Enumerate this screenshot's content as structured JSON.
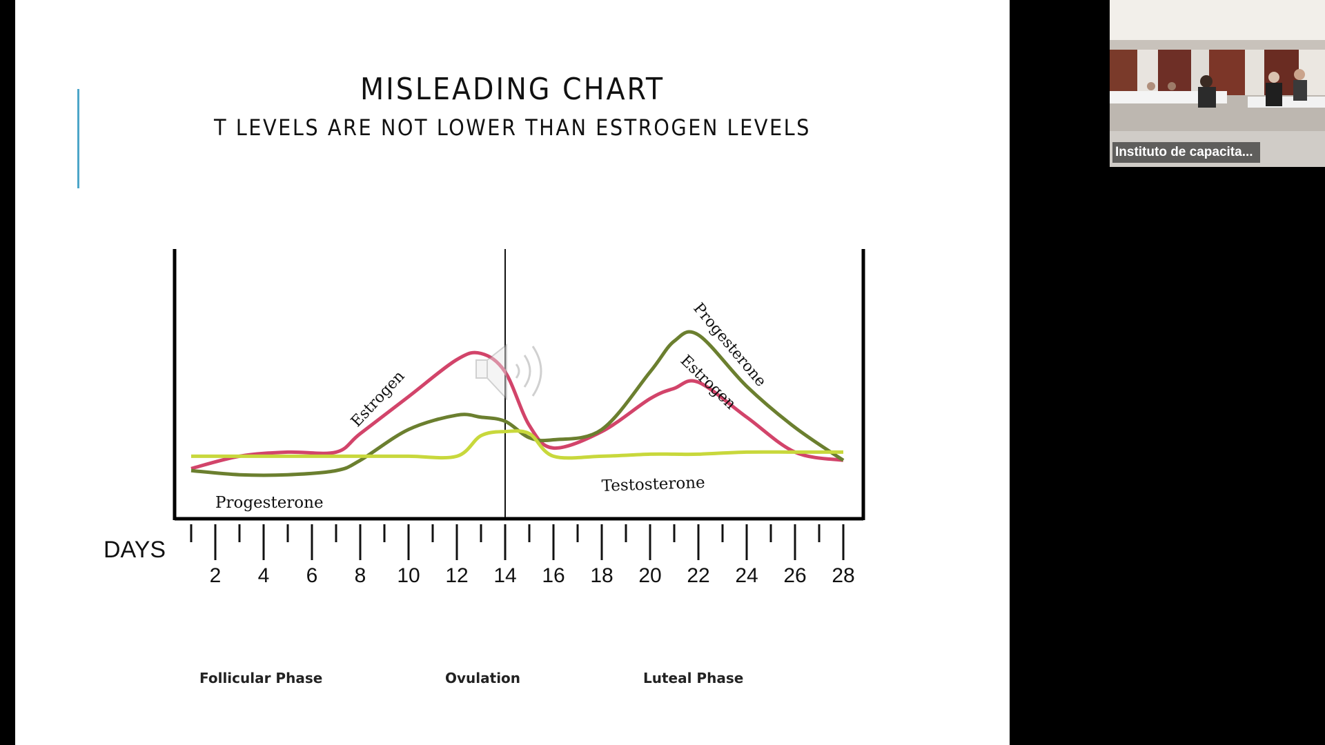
{
  "slide": {
    "title": "MISLEADING CHART",
    "subtitle": "T LEVELS ARE NOT LOWER THAN ESTROGEN LEVELS",
    "accent_color": "#4da6c9"
  },
  "video_thumbnail": {
    "participant_name": "Instituto de capacita..."
  },
  "chart_data": {
    "type": "line",
    "xlabel": "DAYS",
    "x_ticks": [
      "2",
      "4",
      "6",
      "8",
      "10",
      "12",
      "14",
      "16",
      "18",
      "20",
      "22",
      "24",
      "26",
      "28"
    ],
    "phase_labels": [
      "Follicular Phase",
      "Ovulation",
      "Luteal Phase"
    ],
    "ovulation_marker_day": 14,
    "ylim": [
      0,
      1
    ],
    "x": [
      1,
      3,
      5,
      7,
      8,
      10,
      12,
      13,
      14,
      15,
      16,
      18,
      20,
      21,
      22,
      24,
      26,
      28
    ],
    "series": [
      {
        "name": "Estrogen",
        "color": "#d2446a",
        "values": [
          0.13,
          0.19,
          0.21,
          0.21,
          0.3,
          0.48,
          0.66,
          0.69,
          0.6,
          0.34,
          0.23,
          0.31,
          0.47,
          0.52,
          0.55,
          0.38,
          0.21,
          0.17
        ]
      },
      {
        "name": "Progesterone",
        "color": "#6b7f2f",
        "values": [
          0.12,
          0.1,
          0.1,
          0.12,
          0.17,
          0.32,
          0.39,
          0.38,
          0.36,
          0.28,
          0.27,
          0.32,
          0.6,
          0.75,
          0.78,
          0.53,
          0.33,
          0.17
        ]
      },
      {
        "name": "Testosterone",
        "color": "#c8d83c",
        "values": [
          0.19,
          0.19,
          0.19,
          0.19,
          0.19,
          0.19,
          0.19,
          0.29,
          0.31,
          0.3,
          0.19,
          0.19,
          0.2,
          0.2,
          0.2,
          0.21,
          0.21,
          0.21
        ]
      }
    ],
    "curve_labels": [
      "Estrogen",
      "Progesterone",
      "Testosterone",
      "Progesterone",
      "Estrogen"
    ],
    "icon": "speaker-icon"
  }
}
